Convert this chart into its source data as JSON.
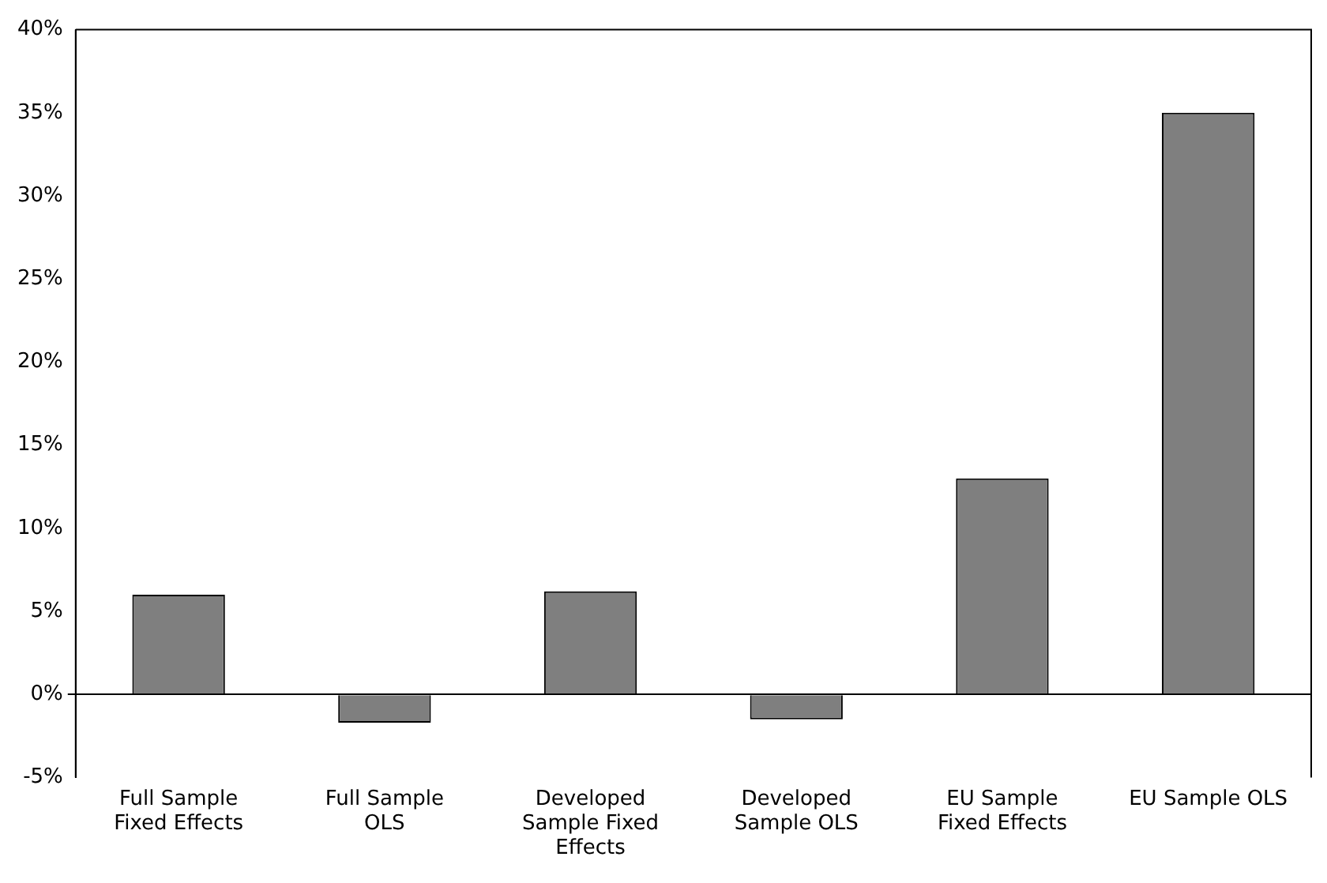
{
  "chart_data": {
    "type": "bar",
    "categories": [
      "Full Sample Fixed Effects",
      "Full Sample OLS",
      "Developed Sample Fixed Effects",
      "Developed Sample OLS",
      "EU Sample Fixed Effects",
      "EU Sample OLS"
    ],
    "values": [
      6,
      -1.7,
      6.2,
      -1.5,
      13,
      35
    ],
    "color": "#7f7f7f",
    "ylim": [
      -5,
      40
    ],
    "yticks": [
      {
        "value": -5,
        "label": "-5%"
      },
      {
        "value": 0,
        "label": "0%"
      },
      {
        "value": 5,
        "label": "5%"
      },
      {
        "value": 10,
        "label": "10%"
      },
      {
        "value": 15,
        "label": "15%"
      },
      {
        "value": 20,
        "label": "20%"
      },
      {
        "value": 25,
        "label": "25%"
      },
      {
        "value": 30,
        "label": "30%"
      },
      {
        "value": 35,
        "label": "35%"
      },
      {
        "value": 40,
        "label": "40%"
      }
    ]
  }
}
